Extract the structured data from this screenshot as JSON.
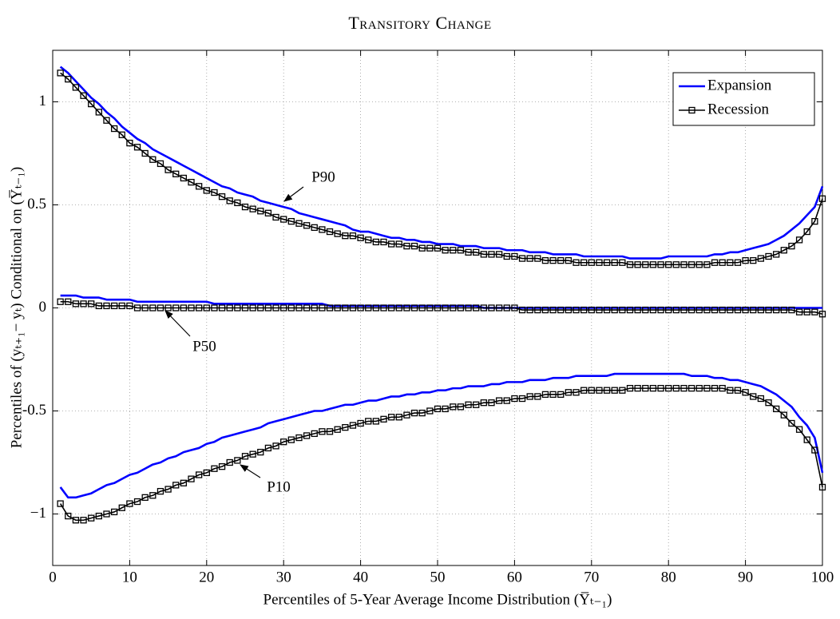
{
  "chart_data": {
    "type": "line",
    "title": "Transitory Change",
    "x_label": "Percentiles of 5-Year Average Income Distribution (Y̅ₜ₋₁)",
    "y_label": "Percentiles of (yₜ₊₁− yₜ) Conditional on (Y̅ₜ₋₁)",
    "x": [
      1,
      2,
      3,
      4,
      5,
      6,
      7,
      8,
      9,
      10,
      11,
      12,
      13,
      14,
      15,
      16,
      17,
      18,
      19,
      20,
      21,
      22,
      23,
      24,
      25,
      26,
      27,
      28,
      29,
      30,
      31,
      32,
      33,
      34,
      35,
      36,
      37,
      38,
      39,
      40,
      41,
      42,
      43,
      44,
      45,
      46,
      47,
      48,
      49,
      50,
      51,
      52,
      53,
      54,
      55,
      56,
      57,
      58,
      59,
      60,
      61,
      62,
      63,
      64,
      65,
      66,
      67,
      68,
      69,
      70,
      71,
      72,
      73,
      74,
      75,
      76,
      77,
      78,
      79,
      80,
      81,
      82,
      83,
      84,
      85,
      86,
      87,
      88,
      89,
      90,
      91,
      92,
      93,
      94,
      95,
      96,
      97,
      98,
      99,
      100
    ],
    "series": [
      {
        "name": "Expansion",
        "color": "#0000ff",
        "values": [
          1.17,
          1.14,
          1.1,
          1.06,
          1.02,
          0.99,
          0.95,
          0.92,
          0.88,
          0.85,
          0.82,
          0.8,
          0.77,
          0.75,
          0.73,
          0.71,
          0.69,
          0.67,
          0.65,
          0.63,
          0.61,
          0.59,
          0.58,
          0.56,
          0.55,
          0.54,
          0.52,
          0.51,
          0.5,
          0.49,
          0.48,
          0.46,
          0.45,
          0.44,
          0.43,
          0.42,
          0.41,
          0.4,
          0.38,
          0.37,
          0.37,
          0.36,
          0.35,
          0.34,
          0.34,
          0.33,
          0.33,
          0.32,
          0.32,
          0.31,
          0.31,
          0.31,
          0.3,
          0.3,
          0.3,
          0.29,
          0.29,
          0.29,
          0.28,
          0.28,
          0.28,
          0.27,
          0.27,
          0.27,
          0.26,
          0.26,
          0.26,
          0.26,
          0.25,
          0.25,
          0.25,
          0.25,
          0.25,
          0.25,
          0.24,
          0.24,
          0.24,
          0.24,
          0.24,
          0.25,
          0.25,
          0.25,
          0.25,
          0.25,
          0.25,
          0.26,
          0.26,
          0.27,
          0.27,
          0.28,
          0.29,
          0.3,
          0.31,
          0.33,
          0.35,
          0.38,
          0.41,
          0.45,
          0.49,
          0.59
        ]
      },
      {
        "color": "#0000ff",
        "values": [
          0.06,
          0.06,
          0.06,
          0.05,
          0.05,
          0.05,
          0.04,
          0.04,
          0.04,
          0.04,
          0.03,
          0.03,
          0.03,
          0.03,
          0.03,
          0.03,
          0.03,
          0.03,
          0.03,
          0.03,
          0.02,
          0.02,
          0.02,
          0.02,
          0.02,
          0.02,
          0.02,
          0.02,
          0.02,
          0.02,
          0.02,
          0.02,
          0.02,
          0.02,
          0.02,
          0.01,
          0.01,
          0.01,
          0.01,
          0.01,
          0.01,
          0.01,
          0.01,
          0.01,
          0.01,
          0.01,
          0.01,
          0.01,
          0.01,
          0.01,
          0.01,
          0.01,
          0.01,
          0.01,
          0.01,
          0.0,
          0.0,
          0.0,
          0.0,
          0.0,
          0.0,
          0.0,
          0.0,
          0.0,
          0.0,
          0.0,
          0.0,
          0.0,
          0.0,
          0.0,
          0.0,
          0.0,
          0.0,
          0.0,
          0.0,
          0.0,
          0.0,
          0.0,
          0.0,
          0.0,
          0.0,
          0.0,
          0.0,
          0.0,
          0.0,
          0.0,
          0.0,
          0.0,
          0.0,
          0.0,
          0.0,
          0.0,
          0.0,
          0.0,
          0.0,
          0.0,
          0.0,
          0.0,
          0.0,
          0.0
        ]
      },
      {
        "color": "#0000ff",
        "values": [
          -0.87,
          -0.92,
          -0.92,
          -0.91,
          -0.9,
          -0.88,
          -0.86,
          -0.85,
          -0.83,
          -0.81,
          -0.8,
          -0.78,
          -0.76,
          -0.75,
          -0.73,
          -0.72,
          -0.7,
          -0.69,
          -0.68,
          -0.66,
          -0.65,
          -0.63,
          -0.62,
          -0.61,
          -0.6,
          -0.59,
          -0.58,
          -0.56,
          -0.55,
          -0.54,
          -0.53,
          -0.52,
          -0.51,
          -0.5,
          -0.5,
          -0.49,
          -0.48,
          -0.47,
          -0.47,
          -0.46,
          -0.45,
          -0.45,
          -0.44,
          -0.43,
          -0.43,
          -0.42,
          -0.42,
          -0.41,
          -0.41,
          -0.4,
          -0.4,
          -0.39,
          -0.39,
          -0.38,
          -0.38,
          -0.38,
          -0.37,
          -0.37,
          -0.36,
          -0.36,
          -0.36,
          -0.35,
          -0.35,
          -0.35,
          -0.34,
          -0.34,
          -0.34,
          -0.33,
          -0.33,
          -0.33,
          -0.33,
          -0.33,
          -0.32,
          -0.32,
          -0.32,
          -0.32,
          -0.32,
          -0.32,
          -0.32,
          -0.32,
          -0.32,
          -0.32,
          -0.33,
          -0.33,
          -0.33,
          -0.34,
          -0.34,
          -0.35,
          -0.35,
          -0.36,
          -0.37,
          -0.38,
          -0.4,
          -0.42,
          -0.45,
          -0.48,
          -0.53,
          -0.57,
          -0.63,
          -0.8
        ]
      },
      {
        "name": "Recession",
        "color": "#000000",
        "marker": "square",
        "values": [
          1.14,
          1.11,
          1.07,
          1.03,
          0.99,
          0.95,
          0.91,
          0.87,
          0.84,
          0.8,
          0.78,
          0.75,
          0.72,
          0.7,
          0.67,
          0.65,
          0.63,
          0.61,
          0.59,
          0.57,
          0.56,
          0.54,
          0.52,
          0.51,
          0.49,
          0.48,
          0.47,
          0.46,
          0.44,
          0.43,
          0.42,
          0.41,
          0.4,
          0.39,
          0.38,
          0.37,
          0.36,
          0.35,
          0.35,
          0.34,
          0.33,
          0.32,
          0.32,
          0.31,
          0.31,
          0.3,
          0.3,
          0.29,
          0.29,
          0.29,
          0.28,
          0.28,
          0.28,
          0.27,
          0.27,
          0.26,
          0.26,
          0.26,
          0.25,
          0.25,
          0.24,
          0.24,
          0.24,
          0.23,
          0.23,
          0.23,
          0.23,
          0.22,
          0.22,
          0.22,
          0.22,
          0.22,
          0.22,
          0.22,
          0.21,
          0.21,
          0.21,
          0.21,
          0.21,
          0.21,
          0.21,
          0.21,
          0.21,
          0.21,
          0.21,
          0.22,
          0.22,
          0.22,
          0.22,
          0.23,
          0.23,
          0.24,
          0.25,
          0.26,
          0.28,
          0.3,
          0.33,
          0.37,
          0.42,
          0.53
        ]
      },
      {
        "color": "#000000",
        "marker": "square",
        "values": [
          0.03,
          0.03,
          0.02,
          0.02,
          0.02,
          0.01,
          0.01,
          0.01,
          0.01,
          0.01,
          0.0,
          0.0,
          0.0,
          0.0,
          0.0,
          0.0,
          0.0,
          0.0,
          0.0,
          0.0,
          0.0,
          0.0,
          0.0,
          0.0,
          0.0,
          0.0,
          0.0,
          0.0,
          0.0,
          0.0,
          0.0,
          0.0,
          0.0,
          0.0,
          0.0,
          0.0,
          0.0,
          0.0,
          0.0,
          0.0,
          0.0,
          0.0,
          0.0,
          0.0,
          0.0,
          0.0,
          0.0,
          0.0,
          0.0,
          0.0,
          0.0,
          0.0,
          0.0,
          0.0,
          0.0,
          0.0,
          0.0,
          0.0,
          0.0,
          0.0,
          -0.01,
          -0.01,
          -0.01,
          -0.01,
          -0.01,
          -0.01,
          -0.01,
          -0.01,
          -0.01,
          -0.01,
          -0.01,
          -0.01,
          -0.01,
          -0.01,
          -0.01,
          -0.01,
          -0.01,
          -0.01,
          -0.01,
          -0.01,
          -0.01,
          -0.01,
          -0.01,
          -0.01,
          -0.01,
          -0.01,
          -0.01,
          -0.01,
          -0.01,
          -0.01,
          -0.01,
          -0.01,
          -0.01,
          -0.01,
          -0.01,
          -0.01,
          -0.02,
          -0.02,
          -0.02,
          -0.03
        ]
      },
      {
        "color": "#000000",
        "marker": "square",
        "values": [
          -0.95,
          -1.01,
          -1.03,
          -1.03,
          -1.02,
          -1.01,
          -1.0,
          -0.99,
          -0.97,
          -0.95,
          -0.94,
          -0.92,
          -0.91,
          -0.89,
          -0.88,
          -0.86,
          -0.85,
          -0.83,
          -0.81,
          -0.8,
          -0.78,
          -0.77,
          -0.75,
          -0.74,
          -0.72,
          -0.71,
          -0.7,
          -0.68,
          -0.67,
          -0.65,
          -0.64,
          -0.63,
          -0.62,
          -0.61,
          -0.6,
          -0.6,
          -0.59,
          -0.58,
          -0.57,
          -0.56,
          -0.55,
          -0.55,
          -0.54,
          -0.53,
          -0.53,
          -0.52,
          -0.51,
          -0.51,
          -0.5,
          -0.49,
          -0.49,
          -0.48,
          -0.48,
          -0.47,
          -0.47,
          -0.46,
          -0.46,
          -0.45,
          -0.45,
          -0.44,
          -0.44,
          -0.43,
          -0.43,
          -0.42,
          -0.42,
          -0.42,
          -0.41,
          -0.41,
          -0.4,
          -0.4,
          -0.4,
          -0.4,
          -0.4,
          -0.4,
          -0.39,
          -0.39,
          -0.39,
          -0.39,
          -0.39,
          -0.39,
          -0.39,
          -0.39,
          -0.39,
          -0.39,
          -0.39,
          -0.39,
          -0.39,
          -0.4,
          -0.4,
          -0.41,
          -0.43,
          -0.44,
          -0.46,
          -0.49,
          -0.52,
          -0.56,
          -0.59,
          -0.64,
          -0.69,
          -0.87
        ]
      }
    ],
    "annotations": [
      {
        "text": "P90"
      },
      {
        "text": "P50"
      },
      {
        "text": "P10"
      }
    ],
    "xlim": [
      0,
      100
    ],
    "xticks": [
      0,
      10,
      20,
      30,
      40,
      50,
      60,
      70,
      80,
      90,
      100
    ],
    "ylim": [
      -1.25,
      1.25
    ],
    "yticks": [
      {
        "value": -1,
        "label": "−1"
      },
      -0.5,
      0,
      0.5,
      1
    ],
    "grid": true,
    "legend": "upper right"
  }
}
